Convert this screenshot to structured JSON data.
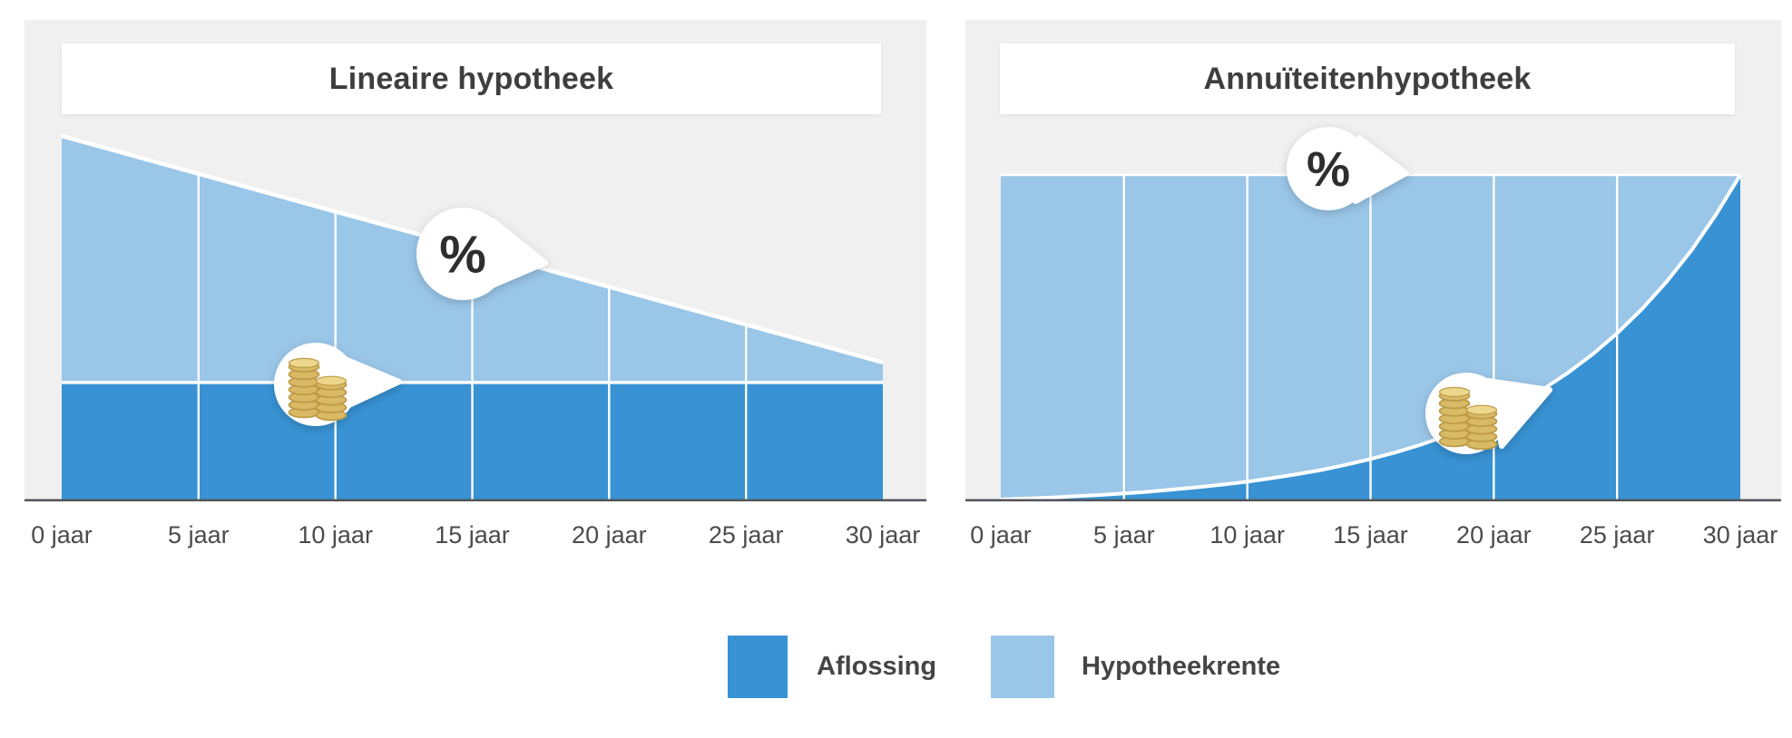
{
  "page": {
    "background": "#ffffff"
  },
  "colors": {
    "aflossing": "#3892d3",
    "hypotheekrente": "#9ac6e8",
    "panel_background": "#f0f0f0",
    "axis_line": "#54555a",
    "gridline": "#ffffff",
    "bubble": "#ffffff",
    "percent_glyph": "#2d2d2d",
    "title_text": "#3e3e3e",
    "axis_label_text": "#4b4b4b",
    "legend_text": "#454545",
    "coin_body": "#d8b966",
    "coin_stripe": "#bd9a45",
    "coin_top": "#ecd78d"
  },
  "legend": {
    "items": [
      {
        "label": "Aflossing",
        "color": "#3892d3"
      },
      {
        "label": "Hypotheekrente",
        "color": "#9ac6e8"
      }
    ]
  },
  "chart_data": [
    {
      "type": "area",
      "title": "Lineaire hypotheek",
      "stacked": true,
      "categories": [
        "0 jaar",
        "5 jaar",
        "10 jaar",
        "15 jaar",
        "20 jaar",
        "25 jaar",
        "30 jaar"
      ],
      "x_years": [
        0,
        5,
        10,
        15,
        20,
        25,
        30
      ],
      "xlabel": "",
      "ylabel": "",
      "ylim": [
        0,
        100
      ],
      "y_unit": "relative payment (100 = initial monthly payment)",
      "grid": "vertical-white-lines",
      "legend_position": "shared-bottom",
      "series": [
        {
          "name": "Aflossing",
          "color": "#3892d3",
          "values": [
            32.2,
            32.2,
            32.2,
            32.2,
            32.2,
            32.2,
            32.2
          ]
        },
        {
          "name": "Hypotheekrente",
          "color": "#9ac6e8",
          "values": [
            67.8,
            57.4,
            47.0,
            36.7,
            26.3,
            15.9,
            5.5
          ]
        }
      ],
      "annotations": [
        {
          "icon": "percent-icon",
          "label": "%",
          "points_to": "Hypotheekrente boundary line"
        },
        {
          "icon": "coins-icon",
          "label": "",
          "points_to": "Aflossing boundary line"
        }
      ]
    },
    {
      "type": "area",
      "title": "Annuïteitenhypotheek",
      "stacked": true,
      "categories": [
        "0 jaar",
        "5 jaar",
        "10 jaar",
        "15 jaar",
        "20 jaar",
        "25 jaar",
        "30 jaar"
      ],
      "x_years": [
        0,
        1,
        2,
        3,
        4,
        5,
        6,
        7,
        8,
        9,
        10,
        11,
        12,
        13,
        14,
        15,
        16,
        17,
        18,
        19,
        20,
        21,
        22,
        23,
        24,
        25,
        26,
        27,
        28,
        29,
        30
      ],
      "xlabel": "",
      "ylabel": "",
      "ylim": [
        0,
        100
      ],
      "y_unit": "relative payment (100 = constant monthly payment)",
      "grid": "vertical-white-lines",
      "legend_position": "shared-bottom",
      "series": [
        {
          "name": "Aflossing",
          "color": "#3892d3",
          "values": [
            0,
            0.3,
            0.6,
            1.0,
            1.4,
            1.9,
            2.4,
            3.1,
            3.8,
            4.6,
            5.5,
            6.6,
            7.8,
            9.1,
            10.7,
            12.5,
            14.5,
            16.8,
            19.4,
            22.4,
            25.7,
            29.6,
            34.0,
            39.0,
            44.7,
            51.2,
            58.6,
            67.0,
            76.6,
            87.6,
            100
          ]
        },
        {
          "name": "Hypotheekrente",
          "color": "#9ac6e8",
          "values": [
            100,
            99.7,
            99.4,
            99.0,
            98.6,
            98.1,
            97.6,
            96.9,
            96.2,
            95.4,
            94.5,
            93.4,
            92.2,
            90.9,
            89.3,
            87.5,
            85.5,
            83.2,
            80.6,
            77.6,
            74.3,
            70.4,
            66.0,
            61.0,
            55.3,
            48.8,
            41.4,
            33.0,
            23.4,
            12.4,
            0
          ]
        }
      ],
      "annotations": [
        {
          "icon": "percent-icon",
          "label": "%",
          "points_to": "constant total payment line"
        },
        {
          "icon": "coins-icon",
          "label": "",
          "points_to": "Aflossing boundary curve"
        }
      ]
    }
  ]
}
